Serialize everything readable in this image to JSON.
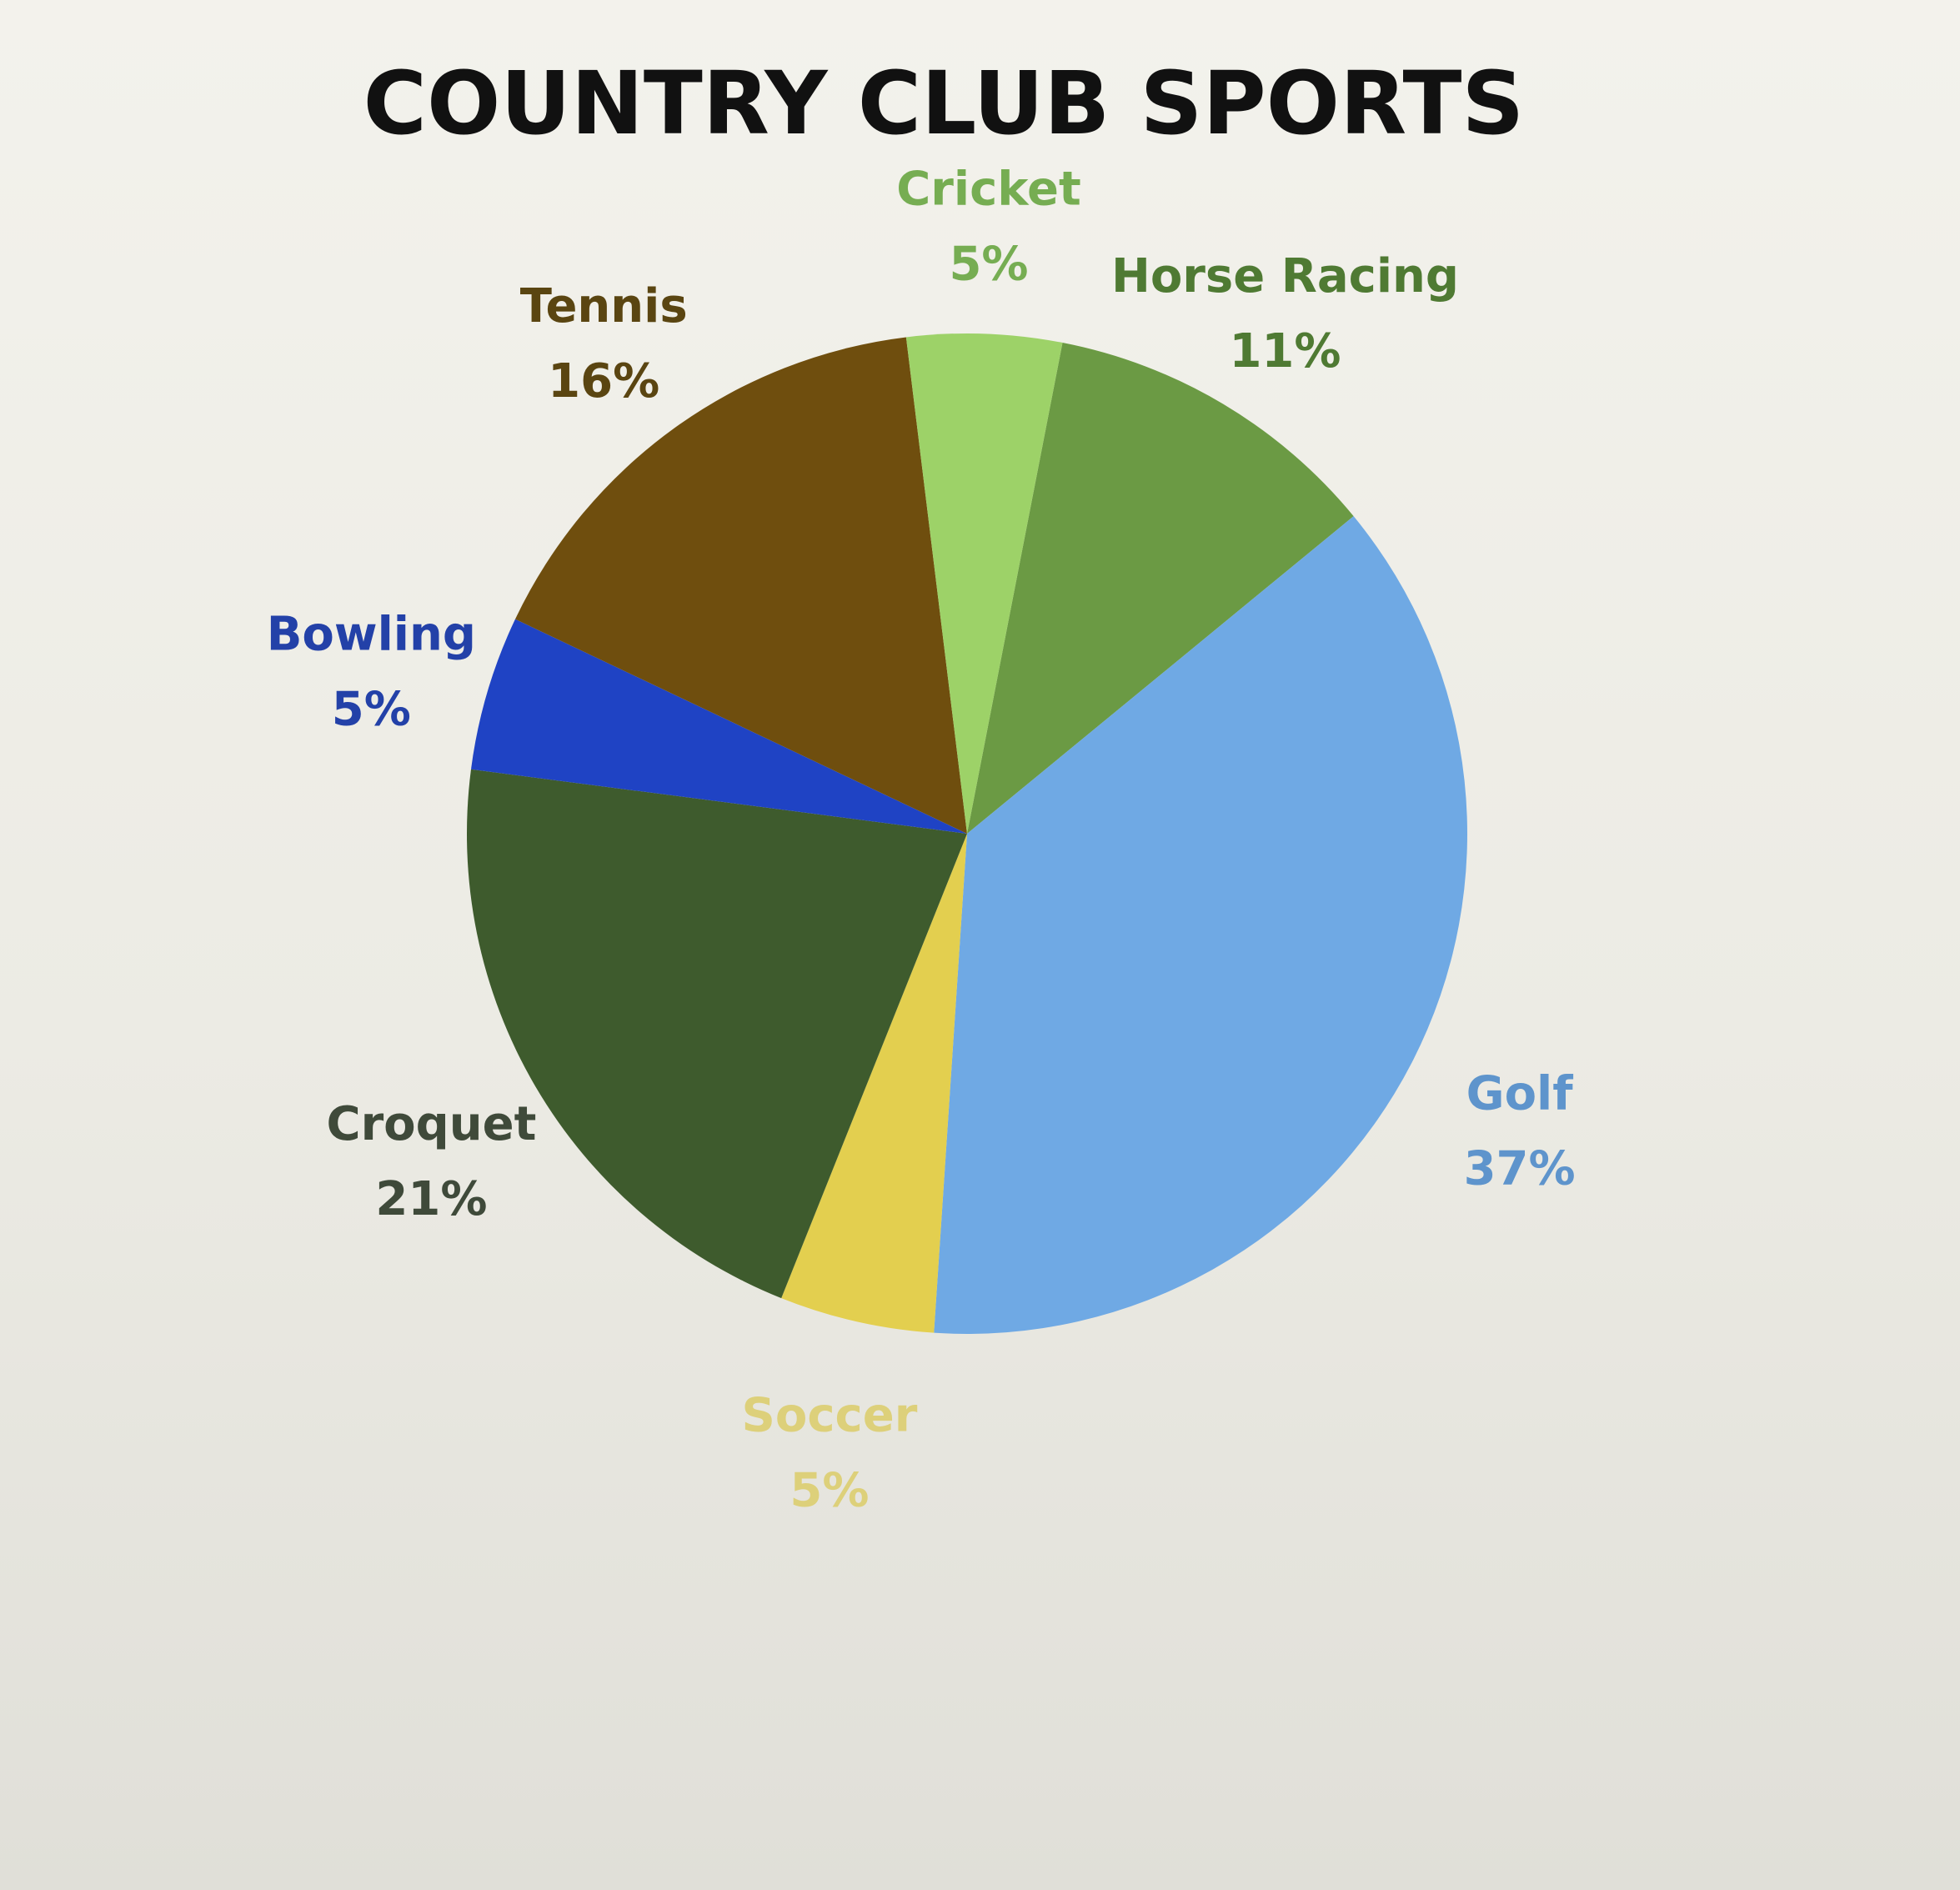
{
  "chart_data": {
    "type": "pie",
    "title": "COUNTRY CLUB SPORTS",
    "slices": [
      {
        "label": "Horse Racing",
        "value": 11,
        "pct_text": "11%",
        "color": "#6b9a44",
        "label_color": "#4f7a33"
      },
      {
        "label": "Golf",
        "value": 37,
        "pct_text": "37%",
        "color": "#6fa9e4",
        "label_color": "#5e94cc"
      },
      {
        "label": "Soccer",
        "value": 5,
        "pct_text": "5%",
        "color": "#e3cf4f",
        "label_color": "#ddd07a"
      },
      {
        "label": "Croquet",
        "value": 21,
        "pct_text": "21%",
        "color": "#3e5b2d",
        "label_color": "#3f4a3a"
      },
      {
        "label": "Bowling",
        "value": 5,
        "pct_text": "5%",
        "color": "#1f43c4",
        "label_color": "#2341a8"
      },
      {
        "label": "Tennis",
        "value": 16,
        "pct_text": "16%",
        "color": "#6f4e0e",
        "label_color": "#5a4511"
      },
      {
        "label": "Cricket",
        "value": 5,
        "pct_text": "5%",
        "color": "#9dd268",
        "label_color": "#76ad52"
      }
    ],
    "legend": "none"
  }
}
